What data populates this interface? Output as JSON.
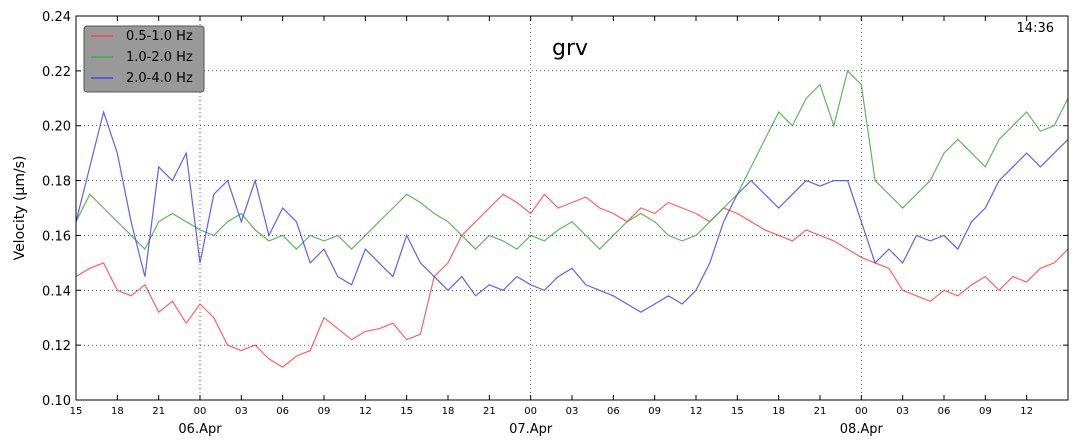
{
  "chart_data": {
    "type": "line",
    "title": "grv",
    "corner_label": "14:36",
    "ylabel": "Velocity (µm/s)",
    "ylim": [
      0.1,
      0.24
    ],
    "yticks": [
      "0.10",
      "0.12",
      "0.14",
      "0.16",
      "0.18",
      "0.20",
      "0.22",
      "0.24"
    ],
    "x_range_hours": [
      15,
      87
    ],
    "x_tick_labels": [
      "15",
      "18",
      "21",
      "00",
      "03",
      "06",
      "09",
      "12",
      "15",
      "18",
      "21",
      "00",
      "03",
      "06",
      "09",
      "12",
      "15",
      "18",
      "21",
      "00",
      "03",
      "06",
      "09",
      "12"
    ],
    "date_labels": [
      "06.Apr",
      "07.Apr",
      "08.Apr"
    ],
    "grid": true,
    "legend_position": "top-left",
    "series": [
      {
        "name": "0.5-1.0 Hz",
        "color": "#ff4444",
        "x": [
          15,
          16,
          17,
          18,
          19,
          20,
          21,
          22,
          23,
          24,
          25,
          26,
          27,
          28,
          29,
          30,
          31,
          32,
          33,
          34,
          35,
          36,
          37,
          38,
          39,
          40,
          41,
          42,
          43,
          44,
          45,
          46,
          47,
          48,
          49,
          50,
          51,
          52,
          53,
          54,
          55,
          56,
          57,
          58,
          59,
          60,
          61,
          62,
          63,
          64,
          65,
          66,
          67,
          68,
          69,
          70,
          71,
          72,
          73,
          74,
          75,
          76,
          77,
          78,
          79,
          80,
          81,
          82,
          83,
          84,
          85,
          86,
          87
        ],
        "values": [
          0.145,
          0.148,
          0.15,
          0.14,
          0.138,
          0.142,
          0.132,
          0.136,
          0.128,
          0.135,
          0.13,
          0.12,
          0.118,
          0.12,
          0.115,
          0.112,
          0.116,
          0.118,
          0.13,
          0.126,
          0.122,
          0.125,
          0.126,
          0.128,
          0.122,
          0.124,
          0.145,
          0.15,
          0.16,
          0.165,
          0.17,
          0.175,
          0.172,
          0.168,
          0.175,
          0.17,
          0.172,
          0.174,
          0.17,
          0.168,
          0.165,
          0.17,
          0.168,
          0.172,
          0.17,
          0.168,
          0.165,
          0.17,
          0.168,
          0.165,
          0.162,
          0.16,
          0.158,
          0.162,
          0.16,
          0.158,
          0.155,
          0.152,
          0.15,
          0.148,
          0.14,
          0.138,
          0.136,
          0.14,
          0.138,
          0.142,
          0.145,
          0.14,
          0.145,
          0.143,
          0.148,
          0.15,
          0.155
        ]
      },
      {
        "name": "1.0-2.0 Hz",
        "color": "#44aa44",
        "x": [
          15,
          16,
          17,
          18,
          19,
          20,
          21,
          22,
          23,
          24,
          25,
          26,
          27,
          28,
          29,
          30,
          31,
          32,
          33,
          34,
          35,
          36,
          37,
          38,
          39,
          40,
          41,
          42,
          43,
          44,
          45,
          46,
          47,
          48,
          49,
          50,
          51,
          52,
          53,
          54,
          55,
          56,
          57,
          58,
          59,
          60,
          61,
          62,
          63,
          64,
          65,
          66,
          67,
          68,
          69,
          70,
          71,
          72,
          73,
          74,
          75,
          76,
          77,
          78,
          79,
          80,
          81,
          82,
          83,
          84,
          85,
          86,
          87
        ],
        "values": [
          0.165,
          0.175,
          0.17,
          0.165,
          0.16,
          0.155,
          0.165,
          0.168,
          0.165,
          0.162,
          0.16,
          0.165,
          0.168,
          0.162,
          0.158,
          0.16,
          0.155,
          0.16,
          0.158,
          0.16,
          0.155,
          0.16,
          0.165,
          0.17,
          0.175,
          0.172,
          0.168,
          0.165,
          0.16,
          0.155,
          0.16,
          0.158,
          0.155,
          0.16,
          0.158,
          0.162,
          0.165,
          0.16,
          0.155,
          0.16,
          0.165,
          0.168,
          0.165,
          0.16,
          0.158,
          0.16,
          0.165,
          0.17,
          0.175,
          0.185,
          0.195,
          0.205,
          0.2,
          0.21,
          0.215,
          0.2,
          0.22,
          0.215,
          0.18,
          0.175,
          0.17,
          0.175,
          0.18,
          0.19,
          0.195,
          0.19,
          0.185,
          0.195,
          0.2,
          0.205,
          0.198,
          0.2,
          0.21
        ]
      },
      {
        "name": "2.0-4.0 Hz",
        "color": "#4444ee",
        "x": [
          15,
          16,
          17,
          18,
          19,
          20,
          21,
          22,
          23,
          24,
          25,
          26,
          27,
          28,
          29,
          30,
          31,
          32,
          33,
          34,
          35,
          36,
          37,
          38,
          39,
          40,
          41,
          42,
          43,
          44,
          45,
          46,
          47,
          48,
          49,
          50,
          51,
          52,
          53,
          54,
          55,
          56,
          57,
          58,
          59,
          60,
          61,
          62,
          63,
          64,
          65,
          66,
          67,
          68,
          69,
          70,
          71,
          72,
          73,
          74,
          75,
          76,
          77,
          78,
          79,
          80,
          81,
          82,
          83,
          84,
          85,
          86,
          87
        ],
        "values": [
          0.165,
          0.185,
          0.205,
          0.19,
          0.165,
          0.145,
          0.185,
          0.18,
          0.19,
          0.15,
          0.175,
          0.18,
          0.165,
          0.18,
          0.16,
          0.17,
          0.165,
          0.15,
          0.155,
          0.145,
          0.142,
          0.155,
          0.15,
          0.145,
          0.16,
          0.15,
          0.145,
          0.14,
          0.145,
          0.138,
          0.142,
          0.14,
          0.145,
          0.142,
          0.14,
          0.145,
          0.148,
          0.142,
          0.14,
          0.138,
          0.135,
          0.132,
          0.135,
          0.138,
          0.135,
          0.14,
          0.15,
          0.165,
          0.175,
          0.18,
          0.175,
          0.17,
          0.175,
          0.18,
          0.178,
          0.18,
          0.18,
          0.165,
          0.15,
          0.155,
          0.15,
          0.16,
          0.158,
          0.16,
          0.155,
          0.165,
          0.17,
          0.18,
          0.185,
          0.19,
          0.185,
          0.19,
          0.195
        ]
      }
    ]
  }
}
